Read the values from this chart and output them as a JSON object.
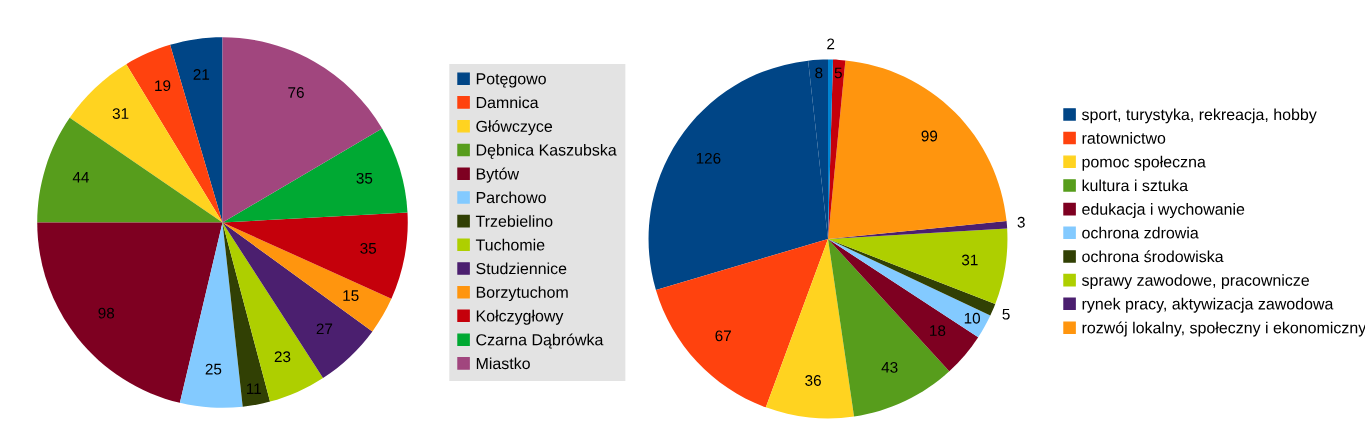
{
  "chart_data": [
    {
      "type": "pie",
      "categories": [
        "Potęgowo",
        "Damnica",
        "Główczyce",
        "Dębnica Kaszubska",
        "Bytów",
        "Parchowo",
        "Trzebielino",
        "Tuchomie",
        "Studziennice",
        "Borzytuchom",
        "Kołczygłowy",
        "Czarna Dąbrówka",
        "Miastko"
      ],
      "values": [
        21,
        19,
        31,
        44,
        98,
        25,
        11,
        23,
        27,
        15,
        35,
        35,
        76
      ],
      "colors": [
        "#004586",
        "#ff420e",
        "#ffd320",
        "#579d1c",
        "#7e0021",
        "#83caff",
        "#314004",
        "#aecf00",
        "#4b1f6f",
        "#ff950e",
        "#c5000b",
        "#00a933",
        "#a1467e"
      ],
      "data_labels": true,
      "legend": "right"
    },
    {
      "type": "pie",
      "categories": [
        null,
        "sport, turystyka, rekreacja, hobby",
        "ratownictwo",
        "pomoc społeczna",
        "kultura i sztuka",
        "edukacja i wychowanie",
        "ochrona zdrowia",
        "ochrona środowiska",
        "sprawy zawodowe, pracownicze",
        "rynek pracy, aktywizacja zawodowa",
        "rozwój lokalny, społeczny i ekonomiczny",
        null,
        null
      ],
      "values": [
        8,
        126,
        67,
        36,
        43,
        18,
        10,
        5,
        31,
        3,
        99,
        5,
        2
      ],
      "colors": [
        "#004586",
        "#004586",
        "#ff420e",
        "#ffd320",
        "#579d1c",
        "#7e0021",
        "#83caff",
        "#314004",
        "#aecf00",
        "#4b1f6f",
        "#ff950e",
        "#c5000b",
        "#0084d1"
      ],
      "data_labels": true,
      "legend": "right"
    }
  ]
}
